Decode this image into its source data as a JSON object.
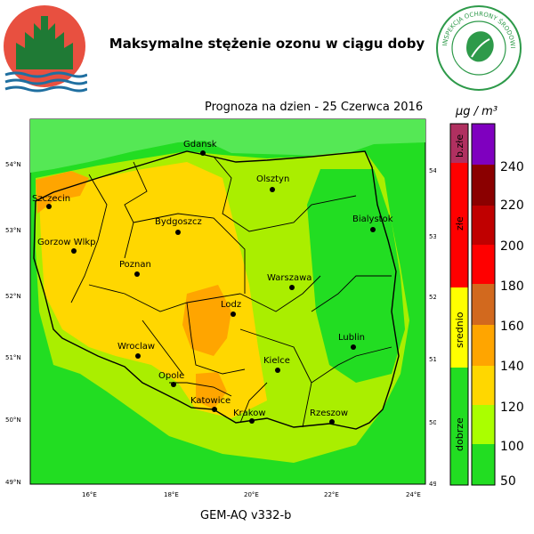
{
  "header": {
    "title": "Maksymalne stężenie ozonu w ciągu doby",
    "right_logo_text": "INSPEKCJA OCHRONY ŚRODOWISKA"
  },
  "map": {
    "forecast_label": "Prognoza na dzien -  25 Czerwca 2016",
    "model_label": "GEM-AQ v332-b",
    "lat_ticks": [
      "54°N",
      "53°N",
      "52°N",
      "51°N",
      "50°N",
      "49°N"
    ],
    "lon_ticks": [
      "16°E",
      "18°E",
      "20°E",
      "22°E",
      "24°E"
    ],
    "cities": [
      {
        "name": "Gdansk"
      },
      {
        "name": "Olsztyn"
      },
      {
        "name": "Szczecin"
      },
      {
        "name": "Bydgoszcz"
      },
      {
        "name": "Bialystok"
      },
      {
        "name": "Gorzow Wlkp"
      },
      {
        "name": "Poznan"
      },
      {
        "name": "Warszawa"
      },
      {
        "name": "Lodz"
      },
      {
        "name": "Wroclaw"
      },
      {
        "name": "Lublin"
      },
      {
        "name": "Kielce"
      },
      {
        "name": "Opole"
      },
      {
        "name": "Katowice"
      },
      {
        "name": "Krakow"
      },
      {
        "name": "Rzeszow"
      }
    ]
  },
  "legend": {
    "units": "µg / m³",
    "categories": [
      {
        "label": "b.złe",
        "color": "#b03060"
      },
      {
        "label": "złe",
        "color": "#ff0000"
      },
      {
        "label": "srednio",
        "color": "#ffff00"
      },
      {
        "label": "dobrze",
        "color": "#00ff00"
      }
    ],
    "values": [
      "240",
      "220",
      "200",
      "180",
      "160",
      "140",
      "120",
      "100",
      "50"
    ],
    "colors": [
      "#7f00bf",
      "#8b0000",
      "#c00000",
      "#ff0000",
      "#d2691e",
      "#ffa500",
      "#ffd700",
      "#ffff00",
      "#aaff00",
      "#00ff00",
      "#00a060"
    ]
  }
}
